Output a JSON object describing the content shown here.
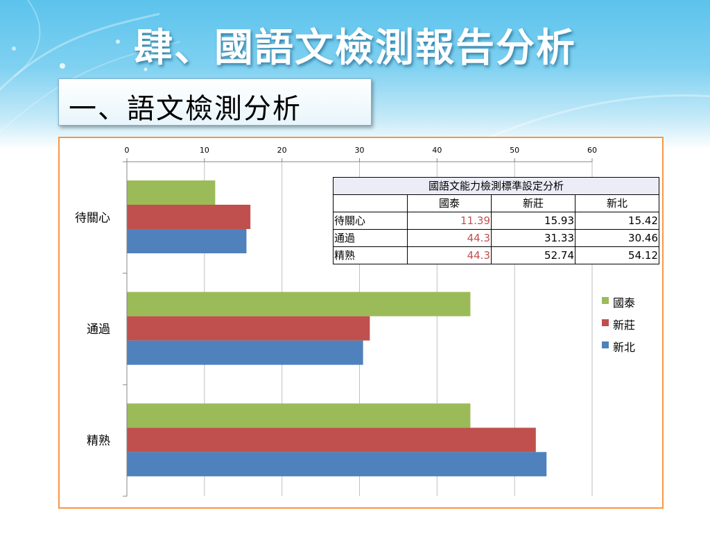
{
  "slide": {
    "title": "肆、國語文檢測報告分析",
    "subtitle": "一、語文檢測分析"
  },
  "colors": {
    "series_guotai": "#9bbb59",
    "series_xinzhuang": "#c0504d",
    "series_xinbei": "#4f81bd",
    "frame": "#f79646",
    "highlight_text": "#c0504d"
  },
  "chart_data": {
    "type": "bar",
    "orientation": "horizontal",
    "categories": [
      "待關心",
      "通過",
      "精熟"
    ],
    "series": [
      {
        "name": "國泰",
        "values": [
          11.39,
          44.3,
          44.3
        ]
      },
      {
        "name": "新莊",
        "values": [
          15.93,
          31.33,
          52.74
        ]
      },
      {
        "name": "新北",
        "values": [
          15.42,
          30.46,
          54.12
        ]
      }
    ],
    "xlim": [
      0,
      60
    ],
    "x_ticks": [
      0,
      10,
      20,
      30,
      40,
      50,
      60
    ],
    "x_axis_position": "top",
    "grid": true,
    "legend_position": "right"
  },
  "table": {
    "caption": "國語文能力檢測標準設定分析",
    "headers": [
      "",
      "國泰",
      "新莊",
      "新北"
    ],
    "rows": [
      {
        "label": "待關心",
        "values": [
          "11.39",
          "15.93",
          "15.42"
        ]
      },
      {
        "label": "通過",
        "values": [
          "44.3",
          "31.33",
          "30.46"
        ]
      },
      {
        "label": "精熟",
        "values": [
          "44.3",
          "52.74",
          "54.12"
        ]
      }
    ]
  }
}
